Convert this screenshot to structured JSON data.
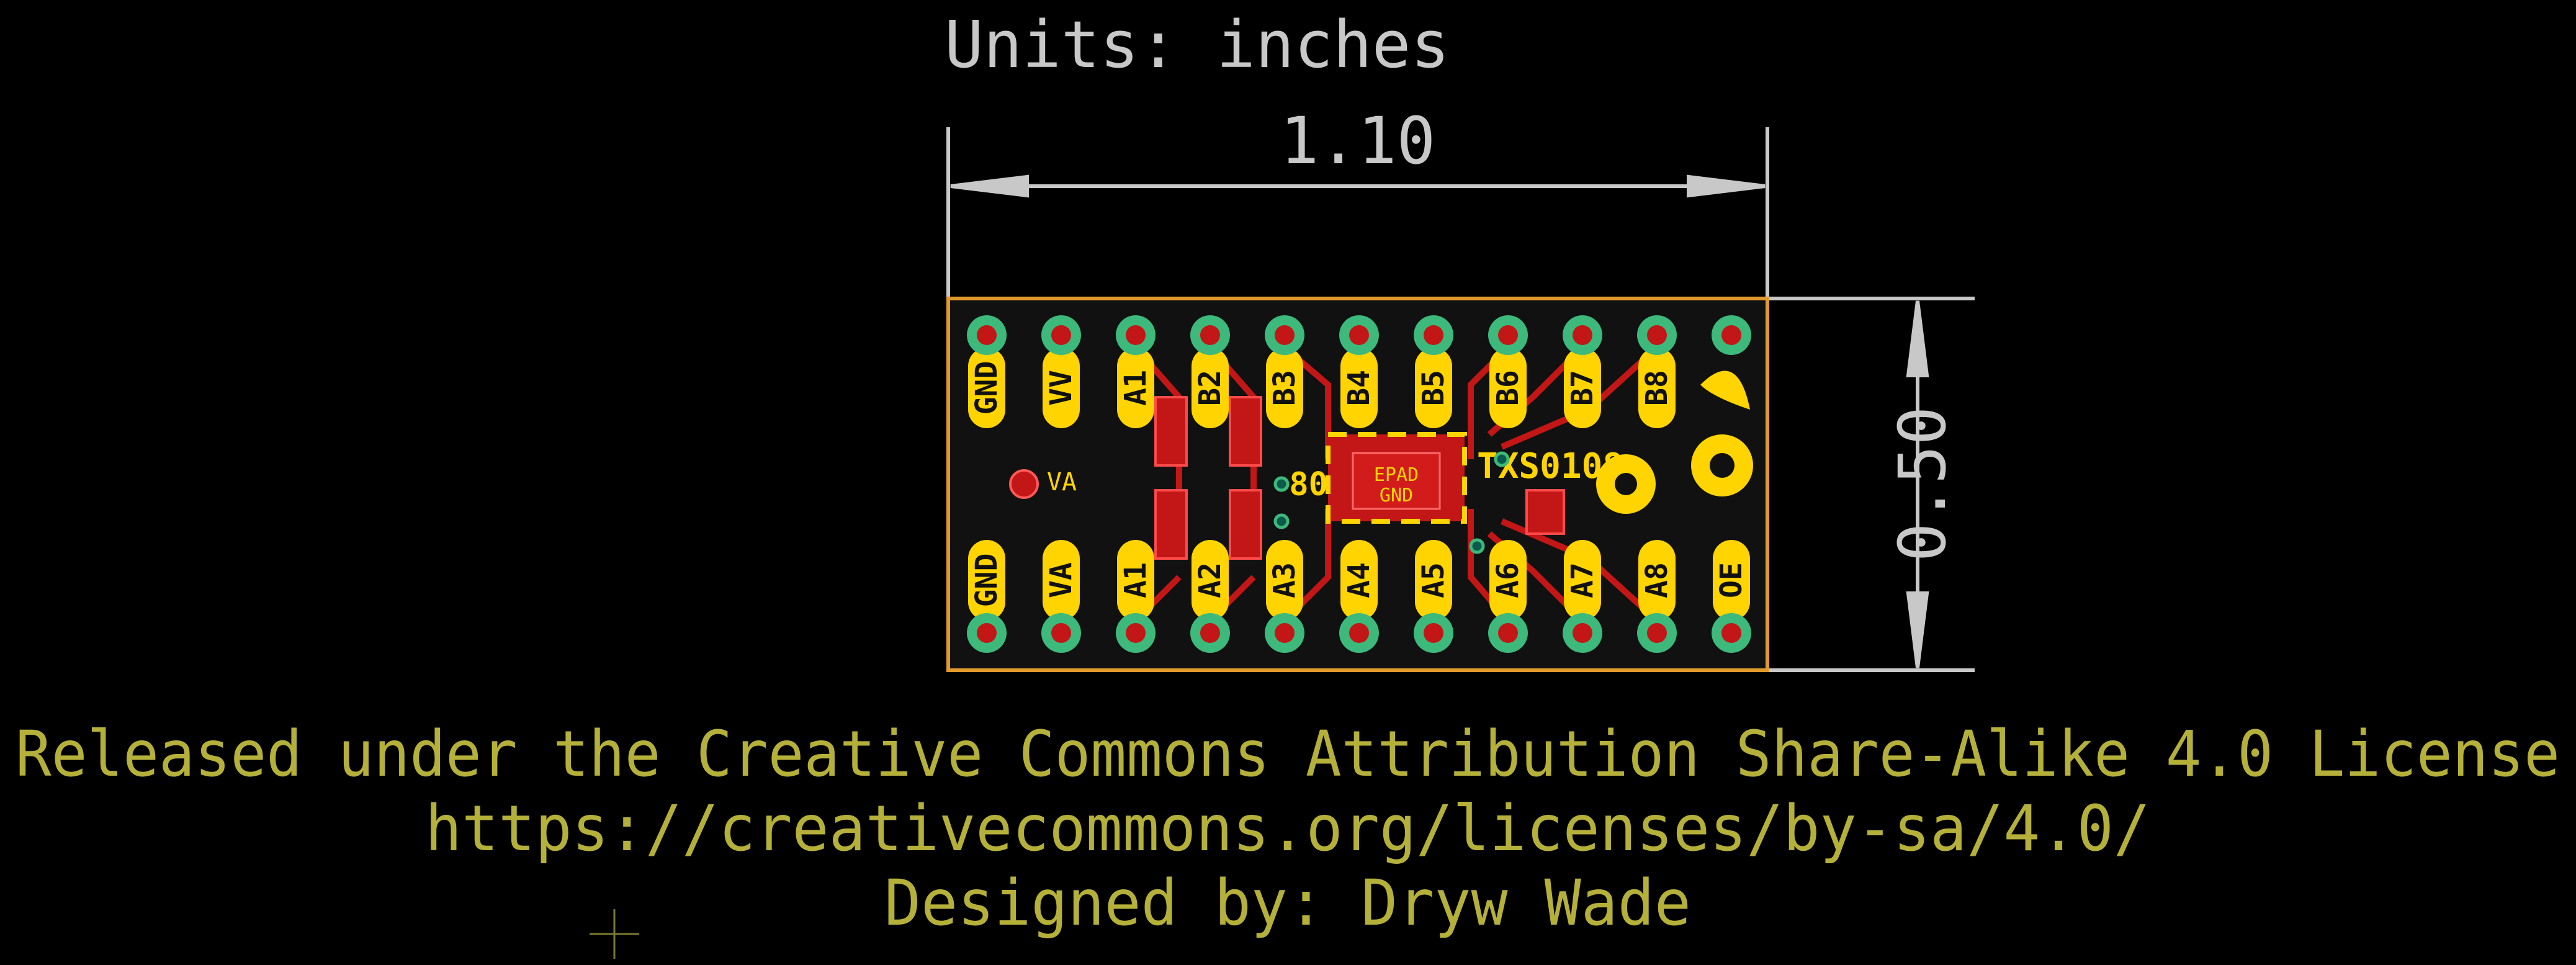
{
  "units_label": "Units: inches",
  "dimensions": {
    "width": "1.10",
    "height": "0.50"
  },
  "board": {
    "chip": {
      "name": "TXS0108",
      "pad_top": "EPAD",
      "pad_bottom": "GND"
    },
    "top_labels": [
      "GND",
      "VV",
      "A1",
      "B2",
      "B3",
      "B4",
      "B5",
      "B6",
      "B7",
      "B8"
    ],
    "bottom_labels": [
      "GND",
      "VA",
      "A1",
      "A2",
      "A3",
      "A4",
      "A5",
      "A6",
      "A7",
      "A8"
    ],
    "side_labels": {
      "left_small": "VA",
      "oe": "OE",
      "chip_left": "80"
    }
  },
  "footer": {
    "license": "Released under the Creative Commons Attribution Share-Alike 4.0 License",
    "url": "https://creativecommons.org/licenses/by-sa/4.0/",
    "designer": "Designed by: Dryw Wade"
  },
  "colors": {
    "background": "#000000",
    "dim": "#c8c8c8",
    "footer_text": "#b5b03a",
    "board": "#ffd400",
    "copper": "#c31616",
    "pad": "#3cb97b",
    "outline": "#e09a2c"
  }
}
